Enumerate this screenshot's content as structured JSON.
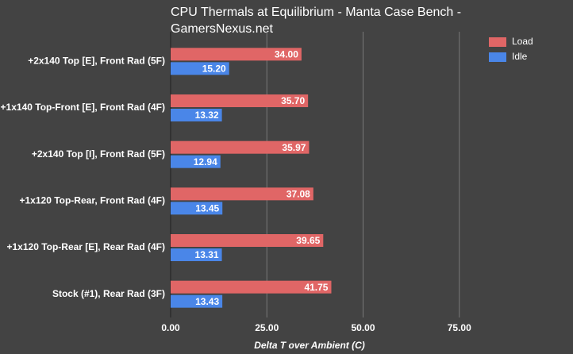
{
  "chart_data": {
    "type": "bar",
    "orientation": "horizontal",
    "title": "CPU Thermals at Equilibrium - Manta Case Bench - GamersNexus.net",
    "x_label": "Delta T over Ambient (C)",
    "categories": [
      "+2x140 Top [E], Front Rad (5F)",
      "+1x140 Top-Front [E], Front Rad (4F)",
      "+2x140 Top [I], Front Rad (5F)",
      "+1x120 Top-Rear, Front Rad (4F)",
      "+1x120 Top-Rear [E], Rear Rad (4F)",
      "Stock (#1), Rear Rad (3F)"
    ],
    "series": [
      {
        "name": "Load",
        "color": "#e06666",
        "values": [
          34.0,
          35.7,
          35.97,
          37.08,
          39.65,
          41.75
        ],
        "value_labels": [
          "34.00",
          "35.70",
          "35.97",
          "37.08",
          "39.65",
          "41.75"
        ]
      },
      {
        "name": "Idle",
        "color": "#4a86e8",
        "values": [
          15.2,
          13.32,
          12.94,
          13.45,
          13.31,
          13.43
        ],
        "value_labels": [
          "15.20",
          "13.32",
          "12.94",
          "13.45",
          "13.31",
          "13.43"
        ]
      }
    ],
    "xlim": [
      0,
      100
    ],
    "xticks": [
      {
        "value": 0,
        "label": "0.00"
      },
      {
        "value": 25,
        "label": "25.00"
      },
      {
        "value": 50,
        "label": "50.00"
      },
      {
        "value": 75,
        "label": "75.00"
      }
    ],
    "grid": true,
    "legend": "top-right"
  }
}
